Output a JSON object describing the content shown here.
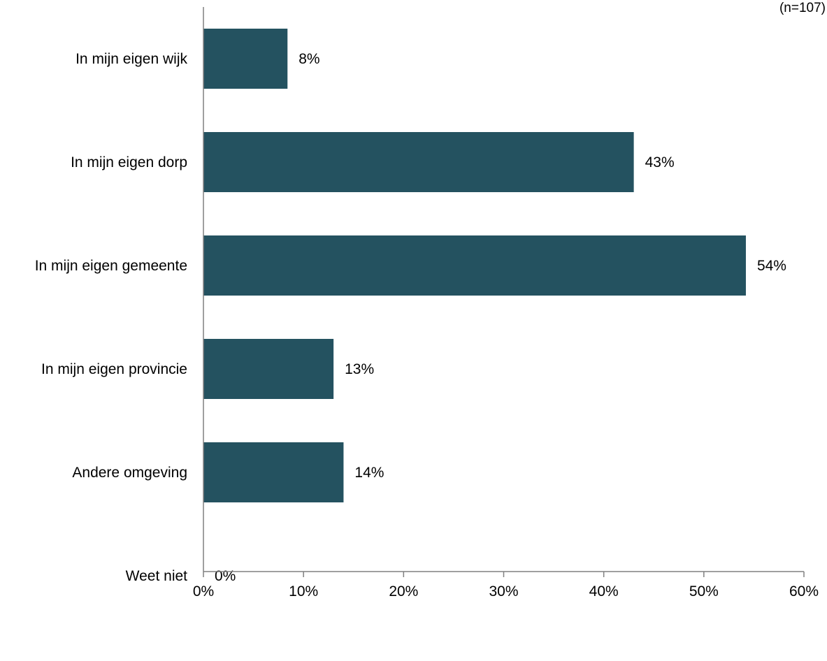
{
  "note": "(n=107)",
  "chart_data": {
    "type": "bar",
    "orientation": "horizontal",
    "categories": [
      "In mijn eigen wijk",
      "In mijn eigen dorp",
      "In mijn eigen gemeente",
      "In mijn eigen provincie",
      "Andere omgeving",
      "Weet niet"
    ],
    "values": [
      8.4,
      43,
      54.2,
      13,
      14,
      0
    ],
    "value_labels": [
      "8%",
      "43%",
      "54%",
      "13%",
      "14%",
      "0%"
    ],
    "xlim": [
      0,
      60
    ],
    "xticks": [
      0,
      10,
      20,
      30,
      40,
      50,
      60
    ],
    "xtick_labels": [
      "0%",
      "10%",
      "20%",
      "30%",
      "40%",
      "50%",
      "60%"
    ],
    "title": "",
    "xlabel": "",
    "ylabel": "",
    "grid": false,
    "bar_color": "#245260"
  }
}
